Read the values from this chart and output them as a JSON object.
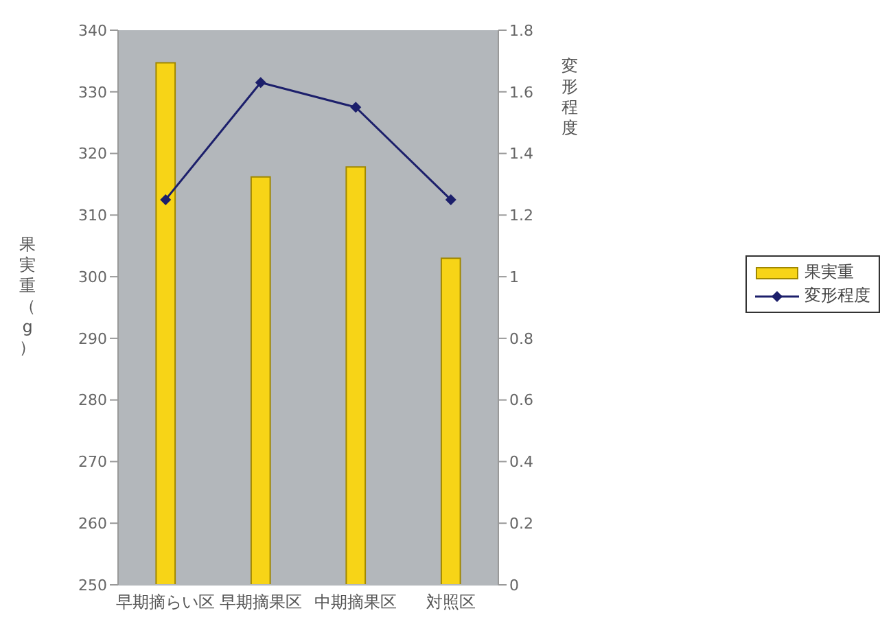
{
  "chart_data": {
    "type": "bar",
    "categories": [
      "早期摘らい区",
      "早期摘果区",
      "中期摘果区",
      "対照区"
    ],
    "ylabel": "果実重（g）",
    "y2label": "変形程度",
    "series": [
      {
        "name": "果実重",
        "color": "#f7d417",
        "values": [
          334.7,
          316.2,
          317.8,
          303.0
        ]
      },
      {
        "name": "変形程度",
        "type": "line",
        "axis": "y2",
        "color": "#1c1f6b",
        "marker": "diamond",
        "values": [
          1.25,
          1.63,
          1.55,
          1.25
        ]
      }
    ],
    "ylim": [
      250,
      340
    ],
    "yticks": [
      250,
      260,
      270,
      280,
      290,
      300,
      310,
      320,
      330,
      340
    ],
    "y2lim": [
      0,
      1.8
    ],
    "y2ticks": [
      0,
      0.2,
      0.4,
      0.6,
      0.8,
      1,
      1.2,
      1.4,
      1.6,
      1.8
    ],
    "legend": "right"
  }
}
